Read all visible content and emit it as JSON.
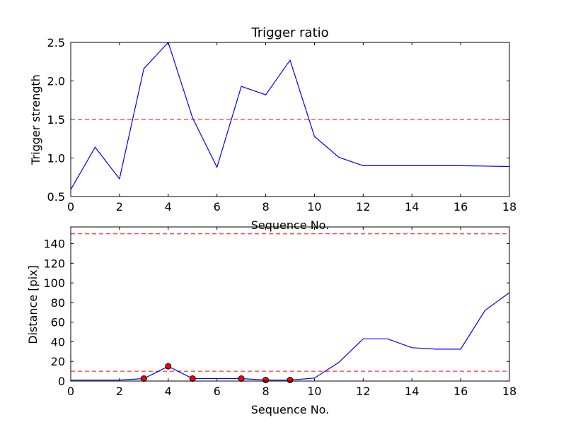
{
  "chart_data": [
    {
      "type": "line",
      "title": "Trigger ratio",
      "xlabel": "Sequence No.",
      "ylabel": "Trigger strength",
      "xlim": [
        0,
        18
      ],
      "ylim": [
        0.5,
        2.5
      ],
      "xticks": [
        0,
        2,
        4,
        6,
        8,
        10,
        12,
        14,
        16,
        18
      ],
      "yticks": [
        0.5,
        1.0,
        1.5,
        2.0,
        2.5
      ],
      "xtick_labels": [
        "0",
        "2",
        "4",
        "6",
        "8",
        "10",
        "12",
        "14",
        "16",
        "18"
      ],
      "ytick_labels": [
        "0.5",
        "1.0",
        "1.5",
        "2.0",
        "2.5"
      ],
      "grid": false,
      "series": [
        {
          "color": "#0000ff",
          "style": "solid",
          "x": [
            0,
            1,
            2,
            3,
            4,
            5,
            6,
            7,
            8,
            9,
            10,
            11,
            12,
            13,
            14,
            15,
            16,
            17,
            18
          ],
          "values": [
            0.59,
            1.14,
            0.73,
            2.16,
            2.5,
            1.52,
            0.88,
            1.93,
            1.82,
            2.27,
            1.28,
            1.01,
            0.9,
            0.9,
            0.9,
            0.9,
            0.9,
            0.895,
            0.89
          ]
        }
      ],
      "hlines": [
        {
          "y": 1.5,
          "color": "#ff0000",
          "style": "dashed"
        }
      ]
    },
    {
      "type": "line",
      "title": "",
      "xlabel": "Sequence No.",
      "ylabel": "Distance [pix]",
      "xlim": [
        0,
        18
      ],
      "ylim": [
        0,
        157
      ],
      "xticks": [
        0,
        2,
        4,
        6,
        8,
        10,
        12,
        14,
        16,
        18
      ],
      "yticks": [
        0,
        20,
        40,
        60,
        80,
        100,
        120,
        140
      ],
      "xtick_labels": [
        "0",
        "2",
        "4",
        "6",
        "8",
        "10",
        "12",
        "14",
        "16",
        "18"
      ],
      "ytick_labels": [
        "0",
        "20",
        "40",
        "60",
        "80",
        "100",
        "120",
        "140"
      ],
      "grid": false,
      "series": [
        {
          "color": "#0000ff",
          "style": "solid",
          "x": [
            0,
            1,
            2,
            3,
            4,
            5,
            6,
            7,
            8,
            9,
            10,
            11,
            12,
            13,
            14,
            15,
            16,
            17,
            18
          ],
          "values": [
            1,
            1,
            1,
            2.5,
            15,
            2.5,
            2.5,
            2.5,
            1,
            1,
            3,
            19,
            43,
            43,
            34,
            32.5,
            32.5,
            72,
            90
          ]
        },
        {
          "color": "#ff0000",
          "style": "markers",
          "x": [
            3,
            4,
            5,
            7,
            8,
            9
          ],
          "values": [
            2.5,
            15,
            2.5,
            2.5,
            1,
            1
          ]
        }
      ],
      "hlines": [
        {
          "y": 150,
          "color": "#ff0000",
          "style": "dashed"
        },
        {
          "y": 10,
          "color": "#ff0000",
          "style": "dashed"
        }
      ]
    }
  ]
}
